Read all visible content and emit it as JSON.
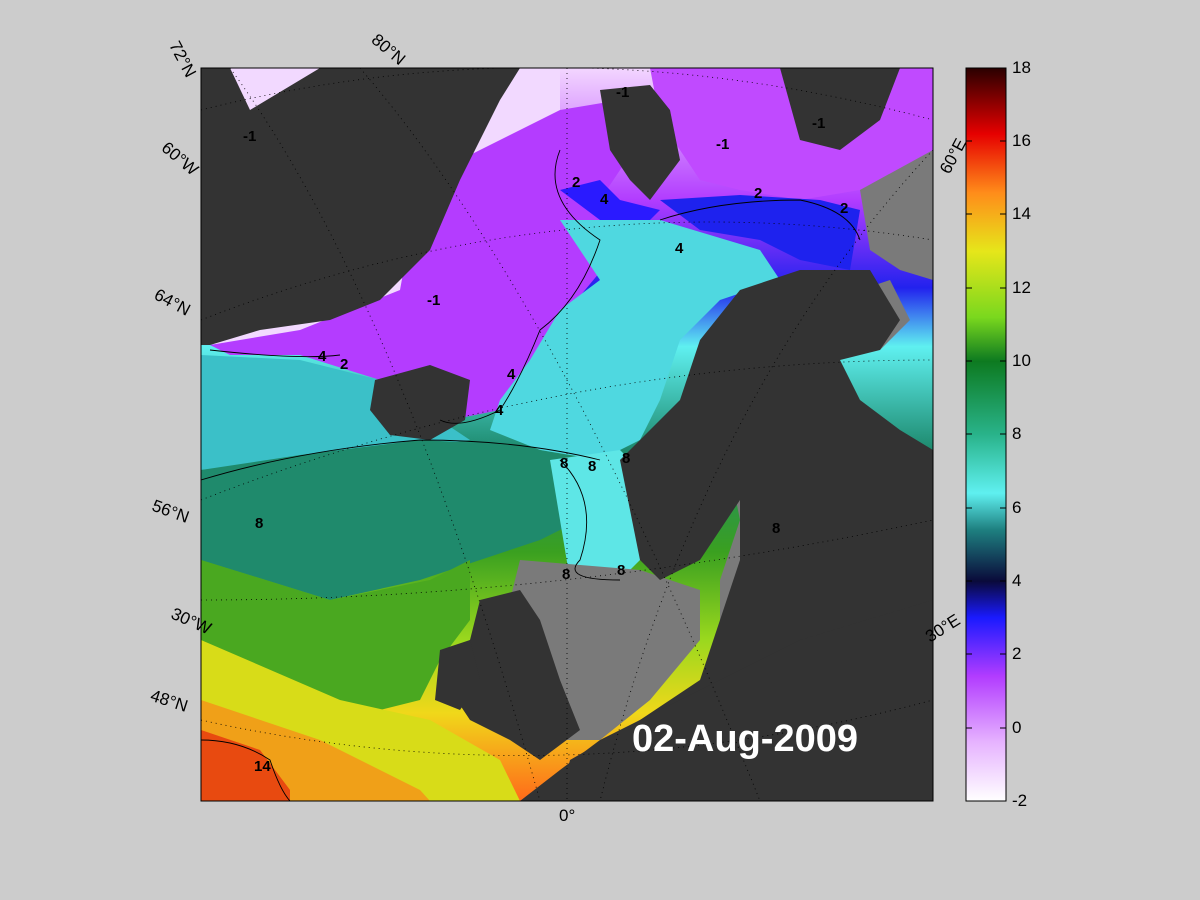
{
  "date_label": "02-Aug-2009",
  "colorbar": {
    "ticks": [
      "18",
      "16",
      "14",
      "12",
      "10",
      "8",
      "6",
      "4",
      "2",
      "0",
      "-2"
    ],
    "range": [
      -2,
      18
    ],
    "stops": [
      "#ffffff",
      "#e6b3ff",
      "#b23cff",
      "#1a1aff",
      "#0a0a3a",
      "#1e8080",
      "#5ff0f0",
      "#29b38a",
      "#0d7a20",
      "#7ad81e",
      "#e6e61a",
      "#ff8c1a",
      "#e60000",
      "#2a0000"
    ]
  },
  "map_labels": {
    "lat72": "72°N",
    "lon80": "80°N",
    "lon60w": "60°W",
    "lat64": "64°N",
    "lat56": "56°N",
    "lon30w": "30°W",
    "lat48": "48°N",
    "lon0": "0°",
    "lon60e": "60°E",
    "lon30e": "30°E"
  },
  "contour_labels": [
    "-1",
    "-1",
    "-1",
    "-1",
    "-1",
    "2",
    "4",
    "2",
    "2",
    "4",
    "4",
    "2",
    "4",
    "4",
    "8",
    "8",
    "8",
    "8",
    "8",
    "8",
    "8",
    "14"
  ],
  "colors": {
    "land": "#333333",
    "shelf": "#7a7a7a",
    "background": "#cccccc"
  }
}
